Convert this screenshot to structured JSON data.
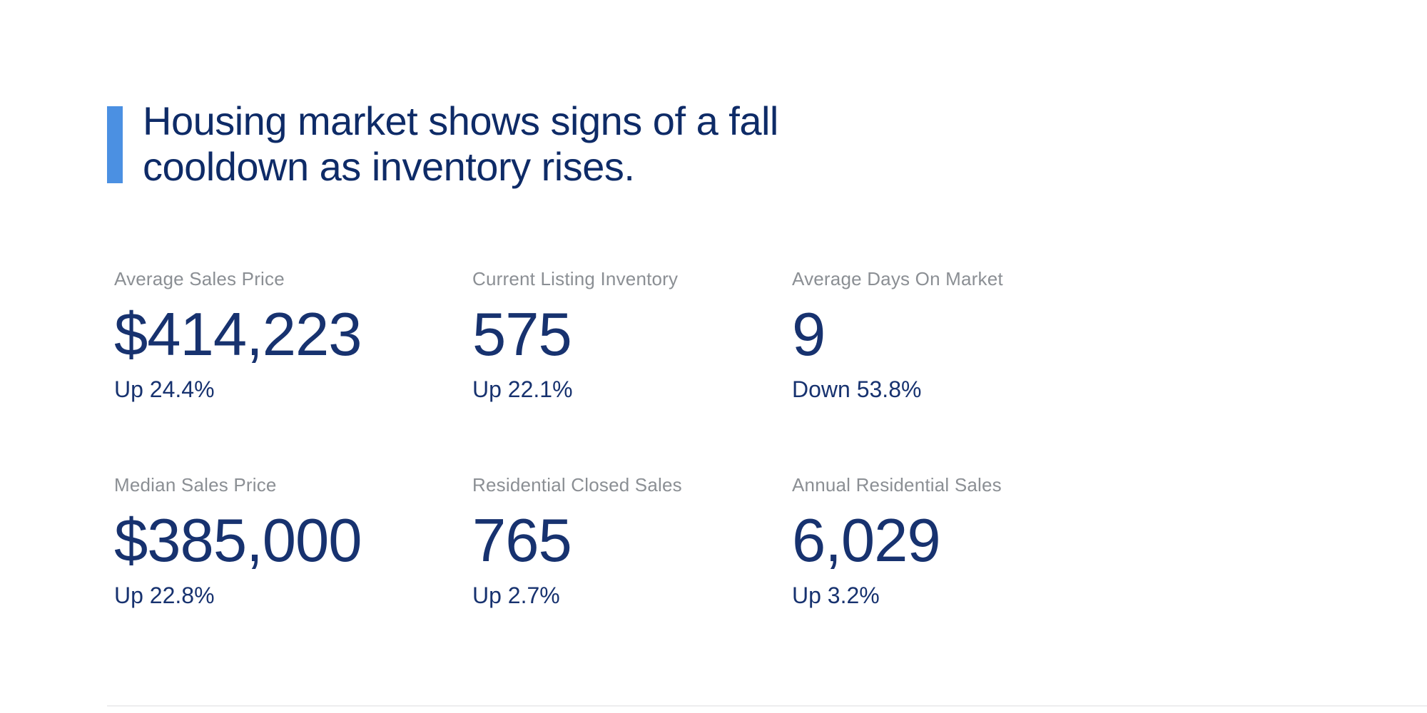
{
  "headline": {
    "line1": "Housing market shows signs of a fall",
    "line2": "cooldown as inventory rises.",
    "accent_bar_color": "#4b90e2",
    "text_color": "#0e2b67"
  },
  "stats": [
    {
      "label": "Average Sales Price",
      "value": "$414,223",
      "change": "Up 24.4%"
    },
    {
      "label": "Current Listing Inventory",
      "value": "575",
      "change": "Up 22.1%"
    },
    {
      "label": "Average Days On Market",
      "value": "9",
      "change": "Down 53.8%"
    },
    {
      "label": "Median Sales Price",
      "value": "$385,000",
      "change": "Up 22.8%"
    },
    {
      "label": "Residential Closed Sales",
      "value": "765",
      "change": "Up 2.7%"
    },
    {
      "label": "Annual Residential Sales",
      "value": "6,029",
      "change": "Up 3.2%"
    }
  ],
  "colors": {
    "stat_value_navy": "#17326f",
    "stat_label_gray": "#8b8f94",
    "accent_blue": "#4b90e2",
    "background": "#ffffff"
  }
}
